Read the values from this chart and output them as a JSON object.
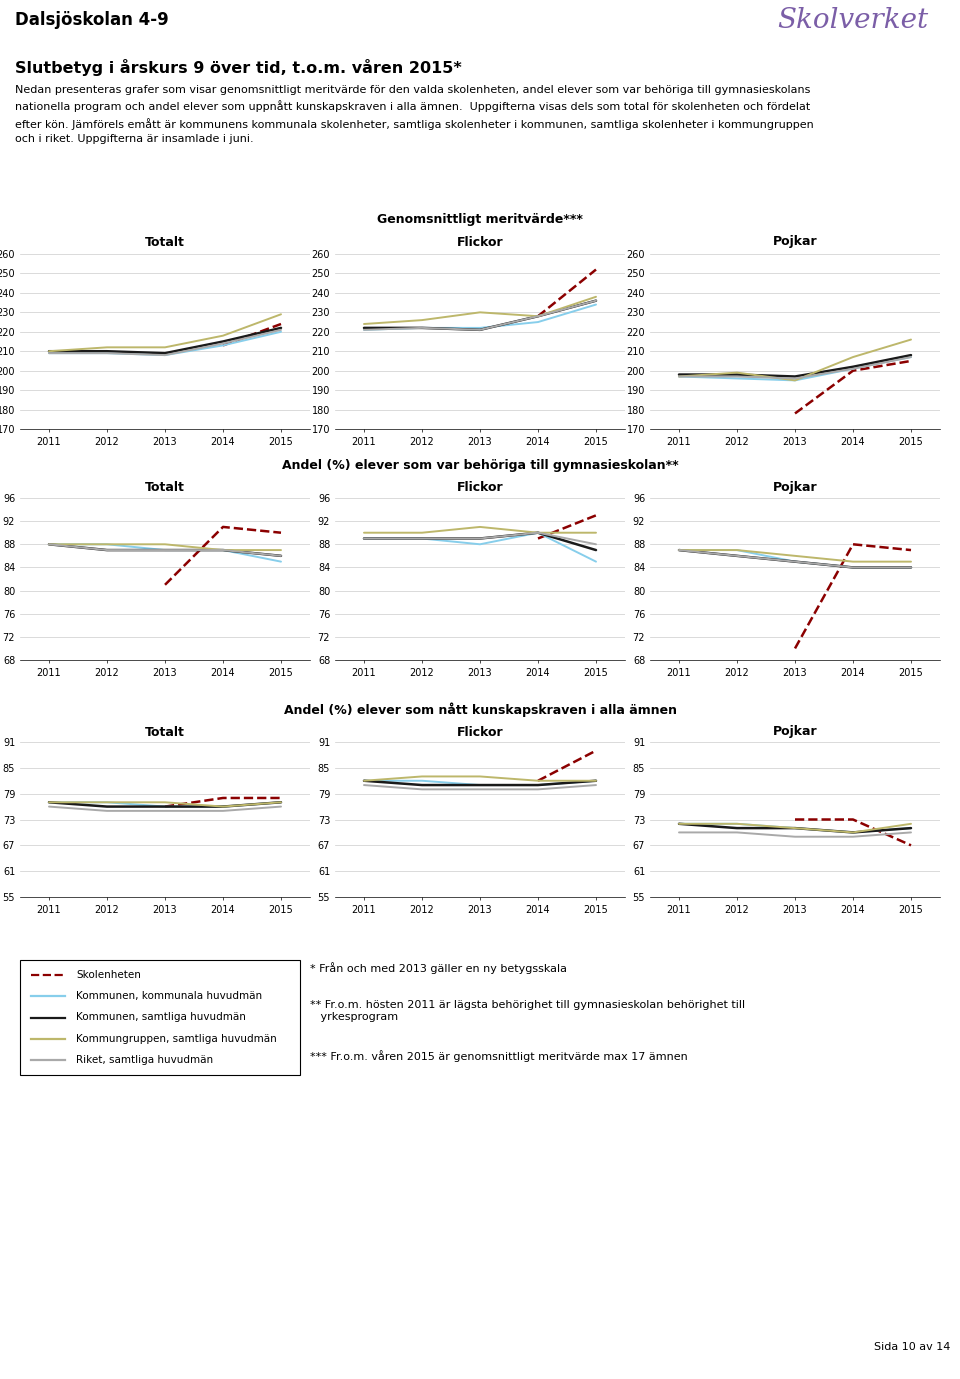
{
  "title": "Dalsjöskolan 4-9",
  "skolverket_text": "Skolverket",
  "subtitle": "Slutbetyg i årskurs 9 över tid, t.o.m. våren 2015*",
  "body_text_lines": [
    "Nedan presenteras grafer som visar genomsnittligt meritvärde för den valda skolenheten, andel elever som var behöriga till gymnasieskolans",
    "nationella program och andel elever som uppnått kunskapskraven i alla ämnen.  Uppgifterna visas dels som total för skolenheten och fördelat",
    "efter kön. Jämförels emått är kommunens kommunala skolenheter, samtliga skolenheter i kommunen, samtliga skolenheter i kommungruppen",
    "och i riket. Uppgifterna är insamlade i juni."
  ],
  "section_titles": [
    "Genomsnittligt meritvärde***",
    "Andel (%) elever som var behöriga till gymnasieskolan**",
    "Andel (%) elever som nått kunskapskraven i alla ämnen"
  ],
  "col_titles": [
    "Totalt",
    "Flickor",
    "Pojkar"
  ],
  "years": [
    2011,
    2012,
    2013,
    2014,
    2015
  ],
  "color_skolenheten": "#8B0000",
  "color_kommunal": "#87CEEB",
  "color_samtliga": "#1a1a1a",
  "color_kommungrupp": "#BDB76B",
  "color_riket": "#A9A9A9",
  "section1_ylim": [
    170,
    260
  ],
  "section1_yticks": [
    170,
    180,
    190,
    200,
    210,
    220,
    230,
    240,
    250,
    260
  ],
  "section2_ylim": [
    68,
    96
  ],
  "section2_yticks": [
    68,
    72,
    76,
    80,
    84,
    88,
    92,
    96
  ],
  "section3_ylim": [
    55,
    91
  ],
  "section3_yticks": [
    55,
    61,
    67,
    73,
    79,
    85,
    91
  ],
  "merit_totalt": {
    "skolenheten": [
      null,
      null,
      null,
      213,
      224
    ],
    "kommunal": [
      209,
      209,
      208,
      213,
      220
    ],
    "samtliga": [
      210,
      210,
      209,
      215,
      222
    ],
    "kommungrupp": [
      210,
      212,
      212,
      218,
      229
    ],
    "riket": [
      209,
      209,
      208,
      214,
      221
    ]
  },
  "merit_flickor": {
    "skolenheten": [
      null,
      null,
      null,
      228,
      252
    ],
    "kommunal": [
      221,
      222,
      222,
      225,
      234
    ],
    "samtliga": [
      222,
      222,
      221,
      228,
      236
    ],
    "kommungrupp": [
      224,
      226,
      230,
      228,
      238
    ],
    "riket": [
      221,
      222,
      221,
      228,
      236
    ]
  },
  "merit_pojkar": {
    "skolenheten": [
      null,
      null,
      178,
      200,
      205
    ],
    "kommunal": [
      197,
      196,
      195,
      201,
      207
    ],
    "samtliga": [
      198,
      198,
      197,
      202,
      208
    ],
    "kommungrupp": [
      197,
      199,
      195,
      207,
      216
    ],
    "riket": [
      197,
      197,
      196,
      201,
      207
    ]
  },
  "behörig_totalt": {
    "skolenheten": [
      null,
      null,
      81,
      91,
      90
    ],
    "kommunal": [
      88,
      88,
      87,
      87,
      85
    ],
    "samtliga": [
      88,
      87,
      87,
      87,
      86
    ],
    "kommungrupp": [
      88,
      88,
      88,
      87,
      87
    ],
    "riket": [
      88,
      87,
      87,
      87,
      86
    ]
  },
  "behörig_flickor": {
    "skolenheten": [
      null,
      null,
      null,
      89,
      93
    ],
    "kommunal": [
      89,
      89,
      88,
      90,
      85
    ],
    "samtliga": [
      89,
      89,
      89,
      90,
      87
    ],
    "kommungrupp": [
      90,
      90,
      91,
      90,
      90
    ],
    "riket": [
      89,
      89,
      89,
      90,
      88
    ]
  },
  "behörig_pojkar": {
    "skolenheten": [
      null,
      null,
      70,
      88,
      87
    ],
    "kommunal": [
      87,
      87,
      85,
      84,
      84
    ],
    "samtliga": [
      87,
      86,
      85,
      84,
      84
    ],
    "kommungrupp": [
      87,
      87,
      86,
      85,
      85
    ],
    "riket": [
      87,
      86,
      85,
      84,
      84
    ]
  },
  "kunskaps_totalt": {
    "skolenheten": [
      null,
      null,
      76,
      78,
      78
    ],
    "kommunal": [
      77,
      77,
      76,
      76,
      77
    ],
    "samtliga": [
      77,
      76,
      76,
      76,
      77
    ],
    "kommungrupp": [
      77,
      77,
      77,
      76,
      77
    ],
    "riket": [
      76,
      75,
      75,
      75,
      76
    ]
  },
  "kunskaps_flickor": {
    "skolenheten": [
      null,
      null,
      null,
      82,
      89
    ],
    "kommunal": [
      82,
      82,
      81,
      81,
      82
    ],
    "samtliga": [
      82,
      81,
      81,
      81,
      82
    ],
    "kommungrupp": [
      82,
      83,
      83,
      82,
      82
    ],
    "riket": [
      81,
      80,
      80,
      80,
      81
    ]
  },
  "kunskaps_pojkar": {
    "skolenheten": [
      null,
      null,
      73,
      73,
      67
    ],
    "kommunal": [
      72,
      72,
      71,
      70,
      71
    ],
    "samtliga": [
      72,
      71,
      71,
      70,
      71
    ],
    "kommungrupp": [
      72,
      72,
      71,
      70,
      72
    ],
    "riket": [
      70,
      70,
      69,
      69,
      70
    ]
  },
  "legend_labels": [
    "Skolenheten",
    "Kommunen, kommunala huvudmän",
    "Kommunen, samtliga huvudmän",
    "Kommungruppen, samtliga huvudmän",
    "Riket, samtliga huvudmän"
  ],
  "footnote1": "* Från och med 2013 gäller en ny betygsskala",
  "footnote2": "** Fr.o.m. hösten 2011 är lägsta behörighet till gymnasieskolan behörighet till\n   yrkesprogram",
  "footnote3": "*** Fr.o.m. våren 2015 är genomsnittligt meritvärde max 17 ämnen",
  "page_text": "Sida 10 av 14"
}
